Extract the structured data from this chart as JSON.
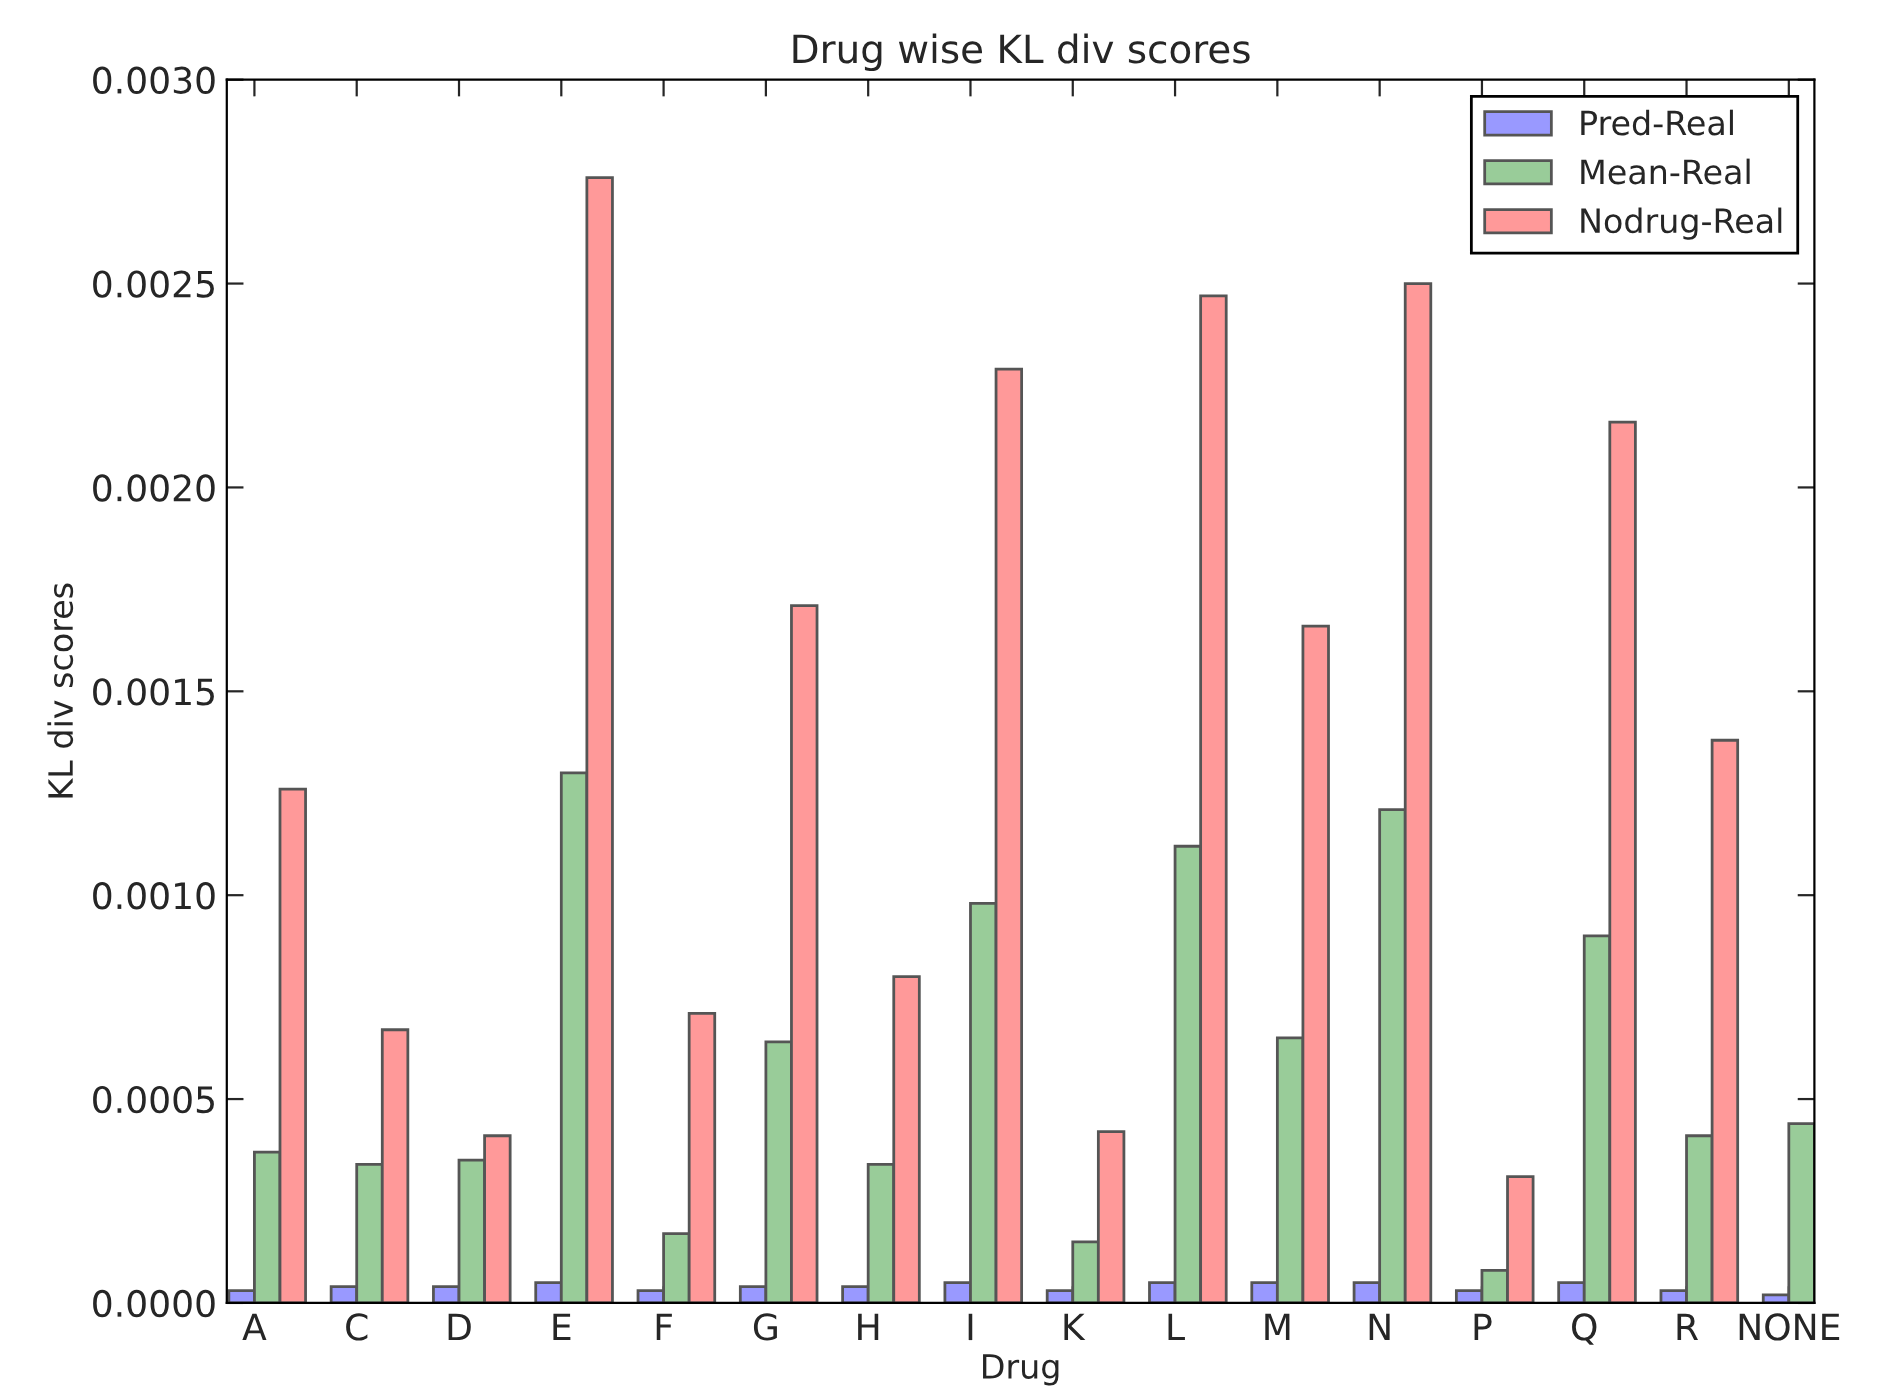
{
  "chart_data": {
    "type": "bar",
    "title": "Drug wise KL div scores",
    "xlabel": "Drug",
    "ylabel": "KL div scores",
    "categories": [
      "A",
      "C",
      "D",
      "E",
      "F",
      "G",
      "H",
      "I",
      "K",
      "L",
      "M",
      "N",
      "P",
      "Q",
      "R",
      "NONE"
    ],
    "series": [
      {
        "name": "Pred-Real",
        "color": "#9999ff",
        "values": [
          3e-05,
          4e-05,
          4e-05,
          5e-05,
          3e-05,
          4e-05,
          4e-05,
          5e-05,
          3e-05,
          5e-05,
          5e-05,
          5e-05,
          3e-05,
          5e-05,
          3e-05,
          2e-05
        ]
      },
      {
        "name": "Mean-Real",
        "color": "#99cc99",
        "values": [
          0.00037,
          0.00034,
          0.00035,
          0.0013,
          0.00017,
          0.00064,
          0.00034,
          0.00098,
          0.00015,
          0.00112,
          0.00065,
          0.00121,
          8e-05,
          0.0009,
          0.00041,
          0.00044
        ]
      },
      {
        "name": "Nodrug-Real",
        "color": "#ff9999",
        "values": [
          0.00126,
          0.00067,
          0.00041,
          0.00276,
          0.00071,
          0.00171,
          0.0008,
          0.00229,
          0.00042,
          0.00247,
          0.00166,
          0.0025,
          0.00031,
          0.00216,
          0.00138,
          null
        ]
      }
    ],
    "ylim": [
      0,
      0.003
    ],
    "yticks": [
      {
        "value": 0,
        "label": "0.0000"
      },
      {
        "value": 0.0005,
        "label": "0.0005"
      },
      {
        "value": 0.001,
        "label": "0.0010"
      },
      {
        "value": 0.0015,
        "label": "0.0015"
      },
      {
        "value": 0.002,
        "label": "0.0020"
      },
      {
        "value": 0.0025,
        "label": "0.0025"
      },
      {
        "value": 0.003,
        "label": "0.0030"
      }
    ],
    "legend": "top right",
    "grid": false
  }
}
